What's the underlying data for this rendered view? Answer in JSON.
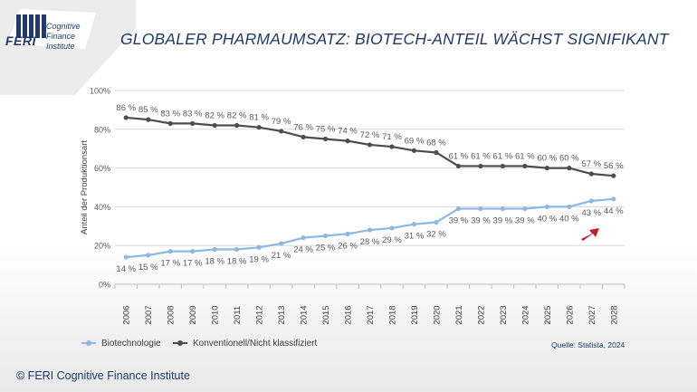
{
  "logo": {
    "name": "FERI",
    "tagline_1": "Cognitive",
    "tagline_2": "Finance",
    "tagline_3": "Institute"
  },
  "title": "GLOBALER PHARMAUMSATZ: BIOTECH-ANTEIL WÄCHST SIGNIFIKANT",
  "footer": "© FERI Cognitive Finance Institute",
  "source": "Quelle: Statista, 2024",
  "colors": {
    "bio": "#8cb8e6",
    "conv": "#4d4d4d",
    "arrow": "#c0202a",
    "title": "#1f3b6b"
  },
  "chart_data": {
    "type": "line",
    "title": "GLOBALER PHARMAUMSATZ: BIOTECH-ANTEIL WÄCHST SIGNIFIKANT",
    "xlabel": "",
    "ylabel": "Anteil der Produktionsart",
    "ylim": [
      0,
      100
    ],
    "yticks": [
      "0%",
      "20%",
      "40%",
      "60%",
      "80%",
      "100%"
    ],
    "grid": true,
    "legend_position": "bottom-left",
    "categories": [
      "2006",
      "2007",
      "2008",
      "2009",
      "2010",
      "2011",
      "2012",
      "2013",
      "2014",
      "2015",
      "2016",
      "2017",
      "2018",
      "2019",
      "2020",
      "2021",
      "2022",
      "2023",
      "2024",
      "2025",
      "2026",
      "2027",
      "2028"
    ],
    "series": [
      {
        "name": "Biotechnologie",
        "color": "#8cb8e6",
        "label_side": "below",
        "values": [
          14,
          15,
          17,
          17,
          18,
          18,
          19,
          21,
          24,
          25,
          26,
          28,
          29,
          31,
          32,
          39,
          39,
          39,
          39,
          40,
          40,
          43,
          44
        ]
      },
      {
        "name": "Konventionell/Nicht klassifiziert",
        "color": "#4d4d4d",
        "label_side": "above",
        "values": [
          86,
          85,
          83,
          83,
          82,
          82,
          81,
          79,
          76,
          75,
          74,
          72,
          71,
          69,
          68,
          61,
          61,
          61,
          61,
          60,
          60,
          57,
          56
        ]
      }
    ]
  }
}
